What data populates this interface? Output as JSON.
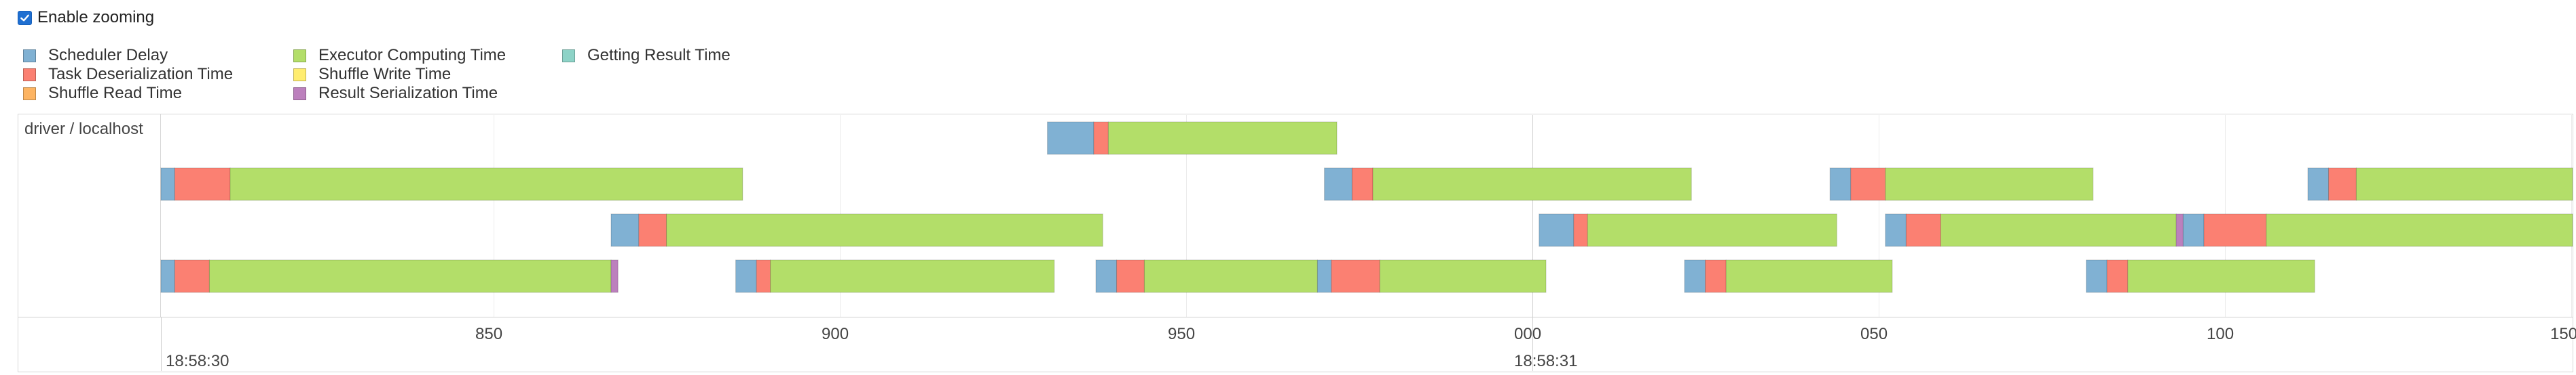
{
  "zoom": {
    "label": "Enable zooming",
    "checked": true
  },
  "legend": [
    {
      "label": "Scheduler Delay",
      "color": "#80b1d3"
    },
    {
      "label": "Task Deserialization Time",
      "color": "#fb8072"
    },
    {
      "label": "Shuffle Read Time",
      "color": "#fdb462"
    },
    {
      "label": "Executor Computing Time",
      "color": "#b3de69"
    },
    {
      "label": "Shuffle Write Time",
      "color": "#ffed6f"
    },
    {
      "label": "Result Serialization Time",
      "color": "#bc80bd"
    },
    {
      "label": "Getting Result Time",
      "color": "#8dd3c7"
    }
  ],
  "timeline": {
    "group_label": "driver / localhost",
    "tick_labels": [
      "850",
      "900",
      "950",
      "000",
      "050",
      "100",
      "150"
    ],
    "time_labels": [
      "18:58:30",
      "18:58:31"
    ],
    "rows": [
      [
        {
          "segments": [
            {
              "phase": "scheduler_delay",
              "start_ms": 930.0,
              "duration_ms": 6.7
            },
            {
              "phase": "task_deserialization",
              "start_ms": 936.7,
              "duration_ms": 2.1
            },
            {
              "phase": "executor_computing",
              "start_ms": 938.8,
              "duration_ms": 33.0
            }
          ]
        }
      ],
      [
        {
          "segments": [
            {
              "phase": "scheduler_delay",
              "start_ms": 802.0,
              "duration_ms": 2.0
            },
            {
              "phase": "task_deserialization",
              "start_ms": 804.0,
              "duration_ms": 8.0
            },
            {
              "phase": "executor_computing",
              "start_ms": 812.0,
              "duration_ms": 74.0
            }
          ]
        },
        {
          "segments": [
            {
              "phase": "scheduler_delay",
              "start_ms": 970.0,
              "duration_ms": 4.0
            },
            {
              "phase": "task_deserialization",
              "start_ms": 974.0,
              "duration_ms": 3.0
            },
            {
              "phase": "executor_computing",
              "start_ms": 977.0,
              "duration_ms": 46.0
            }
          ]
        },
        {
          "segments": [
            {
              "phase": "scheduler_delay",
              "start_ms": 1043.0,
              "duration_ms": 3.0
            },
            {
              "phase": "task_deserialization",
              "start_ms": 1046.0,
              "duration_ms": 5.0
            },
            {
              "phase": "executor_computing",
              "start_ms": 1051.0,
              "duration_ms": 30.0
            }
          ]
        },
        {
          "segments": [
            {
              "phase": "scheduler_delay",
              "start_ms": 1112.0,
              "duration_ms": 3.0
            },
            {
              "phase": "task_deserialization",
              "start_ms": 1115.0,
              "duration_ms": 4.0
            },
            {
              "phase": "executor_computing",
              "start_ms": 1119.0,
              "duration_ms": 35.0
            }
          ]
        }
      ],
      [
        {
          "segments": [
            {
              "phase": "scheduler_delay",
              "start_ms": 867.0,
              "duration_ms": 4.0
            },
            {
              "phase": "task_deserialization",
              "start_ms": 871.0,
              "duration_ms": 4.0
            },
            {
              "phase": "executor_computing",
              "start_ms": 875.0,
              "duration_ms": 63.0
            }
          ]
        },
        {
          "segments": [
            {
              "phase": "scheduler_delay",
              "start_ms": 1001.0,
              "duration_ms": 5.0
            },
            {
              "phase": "task_deserialization",
              "start_ms": 1006.0,
              "duration_ms": 2.0
            },
            {
              "phase": "executor_computing",
              "start_ms": 1008.0,
              "duration_ms": 36.0
            }
          ]
        },
        {
          "segments": [
            {
              "phase": "scheduler_delay",
              "start_ms": 1051.0,
              "duration_ms": 3.0
            },
            {
              "phase": "task_deserialization",
              "start_ms": 1054.0,
              "duration_ms": 5.0
            },
            {
              "phase": "executor_computing",
              "start_ms": 1059.0,
              "duration_ms": 34.0
            }
          ]
        },
        {
          "segments": [
            {
              "phase": "result_serialization",
              "start_ms": 1093.0,
              "duration_ms": 1.0
            },
            {
              "phase": "scheduler_delay",
              "start_ms": 1094.0,
              "duration_ms": 3.0
            },
            {
              "phase": "task_deserialization",
              "start_ms": 1097.0,
              "duration_ms": 9.0
            },
            {
              "phase": "executor_computing",
              "start_ms": 1106.0,
              "duration_ms": 48.0
            }
          ]
        }
      ],
      [
        {
          "segments": [
            {
              "phase": "scheduler_delay",
              "start_ms": 802.0,
              "duration_ms": 2.0
            },
            {
              "phase": "task_deserialization",
              "start_ms": 804.0,
              "duration_ms": 5.0
            },
            {
              "phase": "executor_computing",
              "start_ms": 809.0,
              "duration_ms": 58.0
            },
            {
              "phase": "result_serialization",
              "start_ms": 867.0,
              "duration_ms": 1.0
            }
          ]
        },
        {
          "segments": [
            {
              "phase": "scheduler_delay",
              "start_ms": 885.0,
              "duration_ms": 3.0
            },
            {
              "phase": "task_deserialization",
              "start_ms": 888.0,
              "duration_ms": 2.0
            },
            {
              "phase": "executor_computing",
              "start_ms": 890.0,
              "duration_ms": 41.0
            }
          ]
        },
        {
          "segments": [
            {
              "phase": "scheduler_delay",
              "start_ms": 937.0,
              "duration_ms": 3.0
            },
            {
              "phase": "task_deserialization",
              "start_ms": 940.0,
              "duration_ms": 4.0
            },
            {
              "phase": "executor_computing",
              "start_ms": 944.0,
              "duration_ms": 25.0
            }
          ]
        },
        {
          "segments": [
            {
              "phase": "scheduler_delay",
              "start_ms": 969.0,
              "duration_ms": 2.0
            },
            {
              "phase": "task_deserialization",
              "start_ms": 971.0,
              "duration_ms": 7.0
            },
            {
              "phase": "executor_computing",
              "start_ms": 978.0,
              "duration_ms": 24.0
            }
          ]
        },
        {
          "segments": [
            {
              "phase": "scheduler_delay",
              "start_ms": 1022.0,
              "duration_ms": 3.0
            },
            {
              "phase": "task_deserialization",
              "start_ms": 1025.0,
              "duration_ms": 3.0
            },
            {
              "phase": "executor_computing",
              "start_ms": 1028.0,
              "duration_ms": 24.0
            }
          ]
        },
        {
          "segments": [
            {
              "phase": "scheduler_delay",
              "start_ms": 1080.0,
              "duration_ms": 3.0
            },
            {
              "phase": "task_deserialization",
              "start_ms": 1083.0,
              "duration_ms": 3.0
            },
            {
              "phase": "executor_computing",
              "start_ms": 1086.0,
              "duration_ms": 27.0
            }
          ]
        }
      ]
    ]
  }
}
